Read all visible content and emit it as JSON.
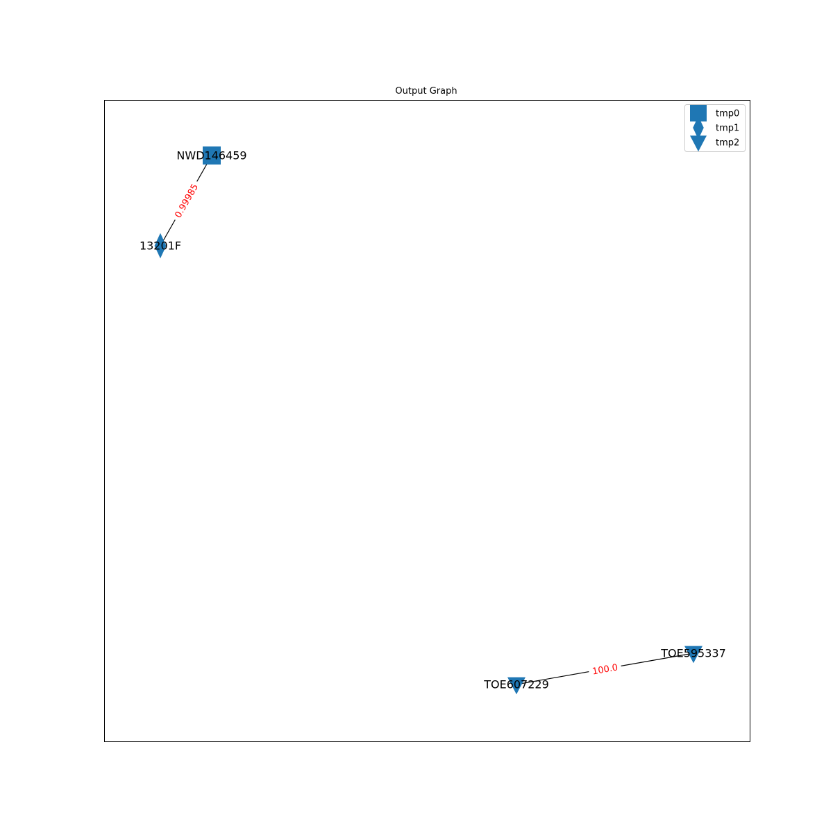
{
  "title": "Output Graph",
  "colors": {
    "node": "#1f77b4",
    "edge": "#000000",
    "edge_label": "#ff0000",
    "frame": "#000000"
  },
  "legend": [
    {
      "label": "tmp0",
      "shape": "square"
    },
    {
      "label": "tmp1",
      "shape": "diamond"
    },
    {
      "label": "tmp2",
      "shape": "triangle-down"
    }
  ],
  "nodes": [
    {
      "id": "NWD146459",
      "label": "NWD146459",
      "group": "tmp0",
      "shape": "square"
    },
    {
      "id": "13201F",
      "label": "13201F",
      "group": "tmp1",
      "shape": "diamond"
    },
    {
      "id": "TOE595337",
      "label": "TOE595337",
      "group": "tmp2",
      "shape": "triangle-down"
    },
    {
      "id": "TOE607229",
      "label": "TOE607229",
      "group": "tmp2",
      "shape": "triangle-down"
    }
  ],
  "edges": [
    {
      "source": "NWD146459",
      "target": "13201F",
      "label": "0.99985"
    },
    {
      "source": "TOE595337",
      "target": "TOE607229",
      "label": "100.0"
    }
  ]
}
